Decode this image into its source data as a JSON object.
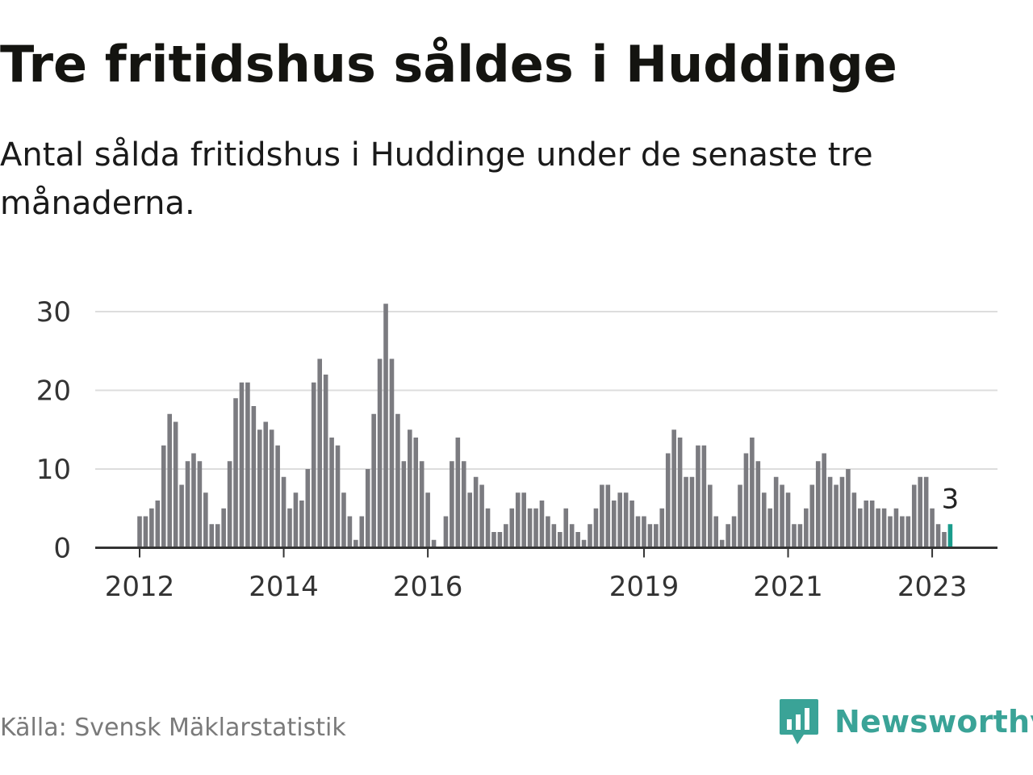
{
  "title": "Tre fritidshus såldes i Huddinge",
  "subtitle": "Antal sålda fritidshus i Huddinge under de senaste tre månaderna.",
  "source": "Källa: Svensk Mäklarstatistik",
  "brand": {
    "name": "Newsworthy",
    "icon": "newsworthy-chart-bubble-icon",
    "color": "#3aa397"
  },
  "colors": {
    "bar": "#7b7b80",
    "highlight": "#1a9c8c",
    "grid": "#dddddd",
    "axis": "#333333"
  },
  "chart_data": {
    "type": "bar",
    "title": "Tre fritidshus såldes i Huddinge",
    "xlabel": "",
    "ylabel": "Antal sålda fritidshus",
    "ylim": [
      0,
      30
    ],
    "yticks": [
      0,
      10,
      20,
      30
    ],
    "grid": true,
    "start": "2012-01",
    "xticks": [
      {
        "label": "2012",
        "index": 0
      },
      {
        "label": "2014",
        "index": 24
      },
      {
        "label": "2016",
        "index": 48
      },
      {
        "label": "2019",
        "index": 84
      },
      {
        "label": "2021",
        "index": 108
      },
      {
        "label": "2023",
        "index": 132
      }
    ],
    "values": [
      4,
      4,
      5,
      6,
      13,
      17,
      16,
      8,
      11,
      12,
      11,
      7,
      3,
      3,
      5,
      11,
      19,
      21,
      21,
      18,
      15,
      16,
      15,
      13,
      9,
      5,
      7,
      6,
      10,
      21,
      24,
      22,
      14,
      13,
      7,
      4,
      1,
      4,
      10,
      17,
      24,
      31,
      24,
      17,
      11,
      15,
      14,
      11,
      7,
      1,
      0,
      4,
      11,
      14,
      11,
      7,
      9,
      8,
      5,
      2,
      2,
      3,
      5,
      7,
      7,
      5,
      5,
      6,
      4,
      3,
      2,
      5,
      3,
      2,
      1,
      3,
      5,
      8,
      8,
      6,
      7,
      7,
      6,
      4,
      4,
      3,
      3,
      5,
      12,
      15,
      14,
      9,
      9,
      13,
      13,
      8,
      4,
      1,
      3,
      4,
      8,
      12,
      14,
      11,
      7,
      5,
      9,
      8,
      7,
      3,
      3,
      5,
      8,
      11,
      12,
      9,
      8,
      9,
      10,
      7,
      5,
      6,
      6,
      5,
      5,
      4,
      5,
      4,
      4,
      8,
      9,
      9,
      5,
      3,
      2,
      3
    ],
    "highlight": {
      "label": "3",
      "value": 3
    }
  }
}
